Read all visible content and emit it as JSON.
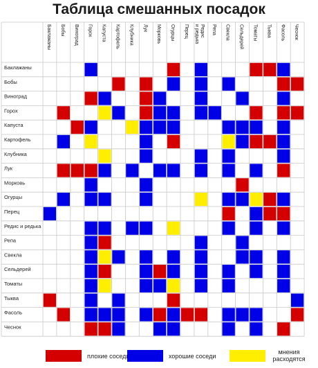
{
  "chart_data": {
    "type": "heatmap",
    "title": "Таблица смешанных посадок",
    "categories": [
      "Баклажаны",
      "Бобы",
      "Виноград",
      "Горох",
      "Капуста",
      "Картофель",
      "Клубника",
      "Лук",
      "Морковь",
      "Огурцы",
      "Перец",
      "Редис и редька",
      "Репа",
      "Свекла",
      "Сельдерей",
      "Томаты",
      "Тыква",
      "Фасоль",
      "Чеснок"
    ],
    "column_labels": [
      "Баклажаны",
      "Бобы",
      "Виноград",
      "Горох",
      "Капуста",
      "Картофель",
      "Клубника",
      "Лук",
      "Морковь",
      "Огурцы",
      "Перец",
      "Редис и редька",
      "Репа",
      "Свекла",
      "Сельдерей",
      "Томаты",
      "Тыква",
      "Фасоль",
      "Чеснок"
    ],
    "row_labels": [
      "Баклажаны",
      "Бобы",
      "Виноград",
      "Горох",
      "Капуста",
      "Картофель",
      "Клубника",
      "Лук",
      "Морковь",
      "Огурцы",
      "Перец",
      "Редис и редька",
      "Репа",
      "Свекла",
      "Сельдерей",
      "Томаты",
      "Тыква",
      "Фасоль",
      "Чеснок"
    ],
    "value_legend": {
      "R": "плохие соседи",
      "B": "хорошие соседи",
      "Y": "мнения расходятся"
    },
    "colors": {
      "R": "#d40000",
      "B": "#0000e6",
      "Y": "#ffee00",
      "grid": "#c8c8c8"
    },
    "matrix": [
      [
        "",
        "",
        "",
        "B",
        "",
        "",
        "",
        "",
        "",
        "R",
        "",
        "B",
        "",
        "",
        "",
        "R",
        "R",
        "B",
        ""
      ],
      [
        "",
        "",
        "",
        "",
        "",
        "R",
        "",
        "R",
        "",
        "B",
        "",
        "B",
        "",
        "B",
        "",
        "",
        "",
        "R",
        "R"
      ],
      [
        "",
        "",
        "",
        "R",
        "B",
        "",
        "",
        "R",
        "B",
        "",
        "",
        "B",
        "",
        "",
        "B",
        "",
        "",
        "B",
        ""
      ],
      [
        "",
        "R",
        "",
        "",
        "Y",
        "B",
        "",
        "R",
        "B",
        "B",
        "",
        "B",
        "B",
        "",
        "",
        "R",
        "",
        "R",
        "R"
      ],
      [
        "",
        "",
        "R",
        "B",
        "",
        "",
        "Y",
        "B",
        "B",
        "B",
        "",
        "",
        "",
        "B",
        "B",
        "B",
        "",
        "B",
        ""
      ],
      [
        "",
        "B",
        "",
        "Y",
        "",
        "",
        "",
        "B",
        "",
        "R",
        "",
        "",
        "",
        "Y",
        "B",
        "R",
        "R",
        "B",
        ""
      ],
      [
        "",
        "",
        "",
        "",
        "Y",
        "",
        "",
        "B",
        "",
        "",
        "",
        "B",
        "",
        "B",
        "",
        "",
        "",
        "B",
        ""
      ],
      [
        "",
        "R",
        "R",
        "R",
        "B",
        "",
        "B",
        "",
        "B",
        "B",
        "",
        "B",
        "",
        "B",
        "",
        "B",
        "",
        "R",
        ""
      ],
      [
        "",
        "",
        "",
        "B",
        "",
        "",
        "",
        "B",
        "",
        "",
        "",
        "",
        "",
        "",
        "R",
        "",
        "",
        "",
        ""
      ],
      [
        "",
        "B",
        "",
        "B",
        "B",
        "",
        "",
        "B",
        "",
        "",
        "",
        "Y",
        "",
        "B",
        "B",
        "Y",
        "R",
        "B",
        ""
      ],
      [
        "B",
        "",
        "",
        "",
        "",
        "",
        "",
        "",
        "",
        "",
        "",
        "",
        "",
        "R",
        "",
        "B",
        "R",
        "R",
        ""
      ],
      [
        "",
        "",
        "",
        "B",
        "B",
        "",
        "B",
        "B",
        "",
        "Y",
        "",
        "",
        "",
        "B",
        "",
        "B",
        "",
        "B",
        ""
      ],
      [
        "",
        "",
        "",
        "B",
        "R",
        "",
        "",
        "",
        "",
        "",
        "",
        "B",
        "",
        "",
        "B",
        "",
        "",
        "",
        ""
      ],
      [
        "",
        "",
        "",
        "B",
        "Y",
        "B",
        "",
        "B",
        "",
        "B",
        "",
        "B",
        "",
        "",
        "B",
        "B",
        "",
        "B",
        ""
      ],
      [
        "",
        "",
        "",
        "B",
        "R",
        "",
        "",
        "B",
        "R",
        "B",
        "",
        "B",
        "",
        "B",
        "",
        "B",
        "",
        "B",
        ""
      ],
      [
        "",
        "",
        "",
        "B",
        "Y",
        "",
        "",
        "B",
        "B",
        "Y",
        "",
        "B",
        "",
        "B",
        "",
        "",
        "",
        "B",
        ""
      ],
      [
        "R",
        "",
        "",
        "B",
        "",
        "B",
        "",
        "",
        "",
        "R",
        "",
        "",
        "",
        "",
        "",
        "",
        "",
        "",
        "B"
      ],
      [
        "",
        "R",
        "",
        "B",
        "B",
        "B",
        "",
        "B",
        "R",
        "B",
        "R",
        "R",
        "",
        "B",
        "B",
        "B",
        "",
        "",
        "R"
      ],
      [
        "",
        "",
        "",
        "R",
        "R",
        "B",
        "",
        "",
        "B",
        "B",
        "",
        "",
        "",
        "B",
        "",
        "B",
        "",
        "R",
        ""
      ]
    ]
  },
  "legend": [
    {
      "key": "R",
      "label": "плохие соседи"
    },
    {
      "key": "B",
      "label": "хорошие соседи"
    },
    {
      "key": "Y",
      "label": "мнения расходятся"
    }
  ]
}
